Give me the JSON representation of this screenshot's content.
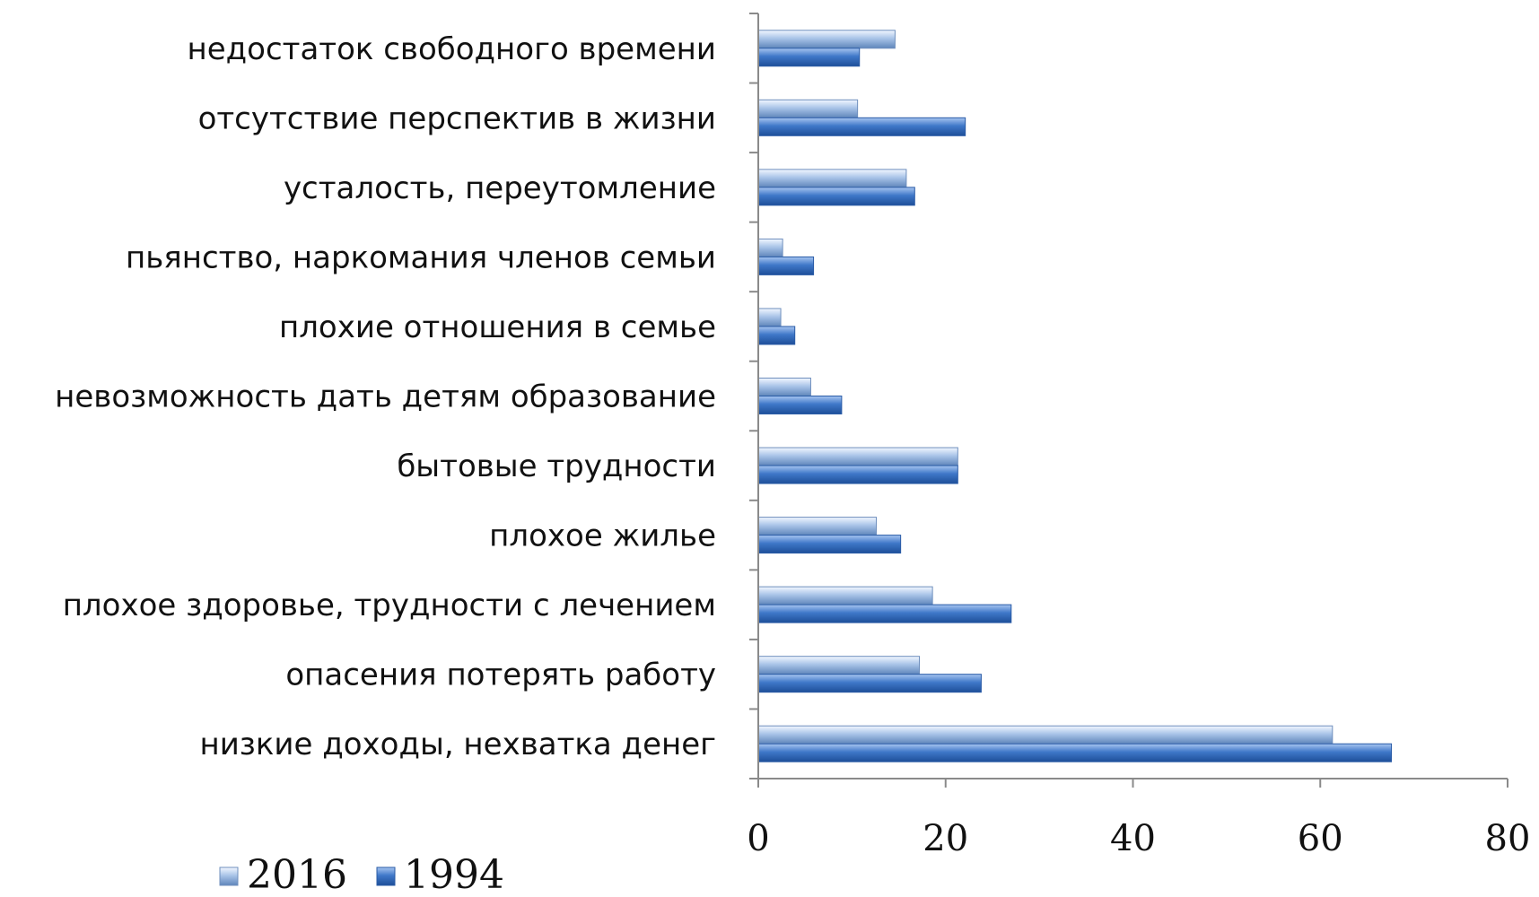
{
  "chart_data": {
    "type": "bar",
    "orientation": "horizontal",
    "title": "",
    "xlabel": "",
    "ylabel": "",
    "xlim": [
      0,
      80
    ],
    "x_ticks": [
      0,
      20,
      40,
      60,
      80
    ],
    "grid": false,
    "legend_position": "bottom-left",
    "categories": [
      "недостаток свободного времени",
      "отсутствие перспектив в жизни",
      "усталость, переутомление",
      "пьянство, наркомания членов семьи",
      "плохие отношения в семье",
      "невозможность дать детям образование",
      "бытовые трудности",
      "плохое жилье",
      "плохое здоровье, трудности с лечением",
      "опасения потерять работу",
      "низкие доходы, нехватка денег"
    ],
    "series": [
      {
        "name": "2016",
        "color": "#a9c4e8",
        "values": [
          14.6,
          10.6,
          15.8,
          2.6,
          2.4,
          5.6,
          21.3,
          12.6,
          18.6,
          17.2,
          61.3
        ]
      },
      {
        "name": "1994",
        "color": "#3f78c9",
        "values": [
          10.8,
          22.1,
          16.7,
          5.9,
          3.9,
          8.9,
          21.3,
          15.2,
          27.0,
          23.8,
          67.6
        ]
      }
    ]
  }
}
